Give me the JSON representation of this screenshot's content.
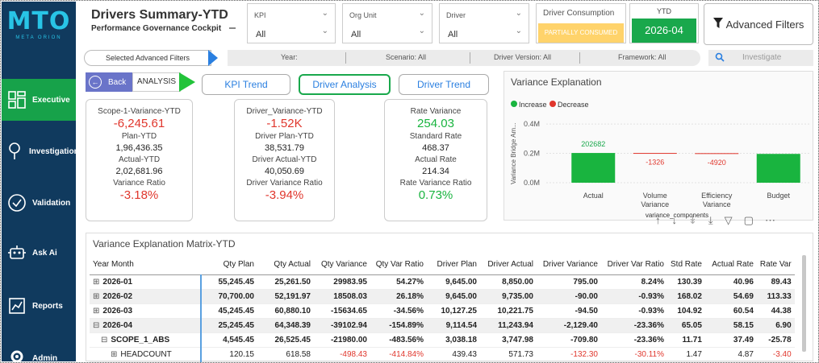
{
  "sidebar": {
    "logo": "MTO",
    "logo_sub": "META ORION",
    "items": [
      {
        "label": "Executive",
        "icon": "dashboard-icon",
        "active": true
      },
      {
        "label": "Investigation",
        "icon": "magnifier-icon",
        "active": false
      },
      {
        "label": "Validation",
        "icon": "check-circle-icon",
        "active": false
      },
      {
        "label": "Ask Ai",
        "icon": "robot-icon",
        "active": false
      },
      {
        "label": "Reports",
        "icon": "chart-report-icon",
        "active": false
      },
      {
        "label": "Admin",
        "icon": "gear-icon",
        "active": false
      }
    ]
  },
  "header": {
    "title": "Drivers Summary-YTD",
    "subtitle": "Performance Governance Cockpit",
    "slicers": [
      {
        "label": "KPI",
        "value": "All"
      },
      {
        "label": "Org Unit",
        "value": "All"
      },
      {
        "label": "Driver",
        "value": "All"
      }
    ],
    "consumption_label": "Driver Consumption",
    "consumption_value": "PARTIALLY CONSUMED",
    "ytd_label": "YTD",
    "ytd_value": "2026-04",
    "advanced_filters": "Advanced Filters"
  },
  "filter_bar": {
    "selected_label": "Selected Advanced Filters",
    "year": "Year:",
    "scenario": "Scenario: All",
    "driver_version": "Driver Version: All",
    "framework": "Framework: All",
    "investigate": "Investigate"
  },
  "nav": {
    "back": "Back",
    "analysis": "ANALYSIS",
    "tabs": [
      "KPI Trend",
      "Driver Analysis",
      "Driver Trend"
    ]
  },
  "kpi_cards": [
    {
      "title": "Scope-1-Variance-YTD",
      "big": "-6,245.61",
      "l1": "Plan-YTD",
      "v1": "1,96,436.35",
      "l2": "Actual-YTD",
      "v2": "2,02,681.96",
      "l3": "Variance Ratio",
      "v3": "-3.18%"
    },
    {
      "title": "Driver_Variance-YTD",
      "big": "-1.52K",
      "l1": "Driver Plan-YTD",
      "v1": "38,531.79",
      "l2": "Driver Actual-YTD",
      "v2": "40,050.69",
      "l3": "Driver Variance Ratio",
      "v3": "-3.94%"
    },
    {
      "title": "Rate Variance",
      "big": "254.03",
      "l1": "Standard Rate",
      "v1": "468.37",
      "l2": "Actual Rate",
      "v2": "214.34",
      "l3": "Rate Variance Ratio",
      "v3": "0.73%"
    }
  ],
  "colors": {
    "increase": "#19b43f",
    "decrease": "#e0362c",
    "accent": "#2a7fe0",
    "sidebar": "#103a5e"
  },
  "chart_data": {
    "type": "waterfall",
    "title": "Variance Explanation",
    "legend": [
      "Increase",
      "Decrease"
    ],
    "ylabel": "Variance Bridge Am...",
    "xlabel": "variance_components",
    "y_ticks": [
      "0.0M",
      "0.2M",
      "0.4M"
    ],
    "categories": [
      "Actual",
      "Volume Variance",
      "Efficiency Variance",
      "Budget"
    ],
    "values": [
      202682,
      -1326,
      -4920,
      196436
    ],
    "data_labels": [
      "202682",
      "-1326",
      "-4920",
      ""
    ],
    "ylim": [
      0,
      0.45
    ]
  },
  "matrix": {
    "title": "Variance Explanation Matrix-YTD",
    "columns": [
      "Year Month",
      "Qty Plan",
      "Qty Actual",
      "Qty Variance",
      "Qty Var Ratio",
      "Driver Plan",
      "Driver Actual",
      "Driver Variance",
      "Driver Var Ratio",
      "Std Rate",
      "Actual Rate",
      "Rate Var"
    ],
    "rows": [
      {
        "label": "2026-01",
        "exp": "⊞",
        "cells": [
          "55,245.45",
          "25,261.50",
          "29983.95",
          "54.27%",
          "9,645.00",
          "8,850.00",
          "795.00",
          "8.24%",
          "130.39",
          "40.96",
          "89.43"
        ]
      },
      {
        "label": "2026-02",
        "exp": "⊞",
        "cells": [
          "70,700.00",
          "52,191.97",
          "18508.03",
          "26.18%",
          "9,645.00",
          "9,735.00",
          "-90.00",
          "-0.93%",
          "168.02",
          "54.69",
          "113.33"
        ]
      },
      {
        "label": "2026-03",
        "exp": "⊞",
        "cells": [
          "45,245.45",
          "60,880.10",
          "-15634.65",
          "-34.56%",
          "10,127.25",
          "10,221.75",
          "-94.50",
          "-0.93%",
          "104.92",
          "60.54",
          "44.38"
        ]
      },
      {
        "label": "2026-04",
        "exp": "⊟",
        "cells": [
          "25,245.45",
          "64,348.39",
          "-39102.94",
          "-154.89%",
          "9,114.54",
          "11,243.94",
          "-2,129.40",
          "-23.36%",
          "65.05",
          "58.15",
          "6.90"
        ]
      },
      {
        "label": "SCOPE_1_ABS",
        "exp": "⊟",
        "cells": [
          "4,545.45",
          "26,525.45",
          "-21980.00",
          "-483.56%",
          "3,038.18",
          "3,747.98",
          "-709.80",
          "-23.36%",
          "11.71",
          "37.49",
          "-25.78"
        ]
      },
      {
        "label": "HEADCOUNT",
        "exp": "⊞",
        "cells": [
          "120.15",
          "618.58",
          "-498.43",
          "-414.84%",
          "439.43",
          "571.73",
          "-132.30",
          "-30.11%",
          "1.47",
          "4.87",
          "-3.40"
        ]
      }
    ]
  }
}
